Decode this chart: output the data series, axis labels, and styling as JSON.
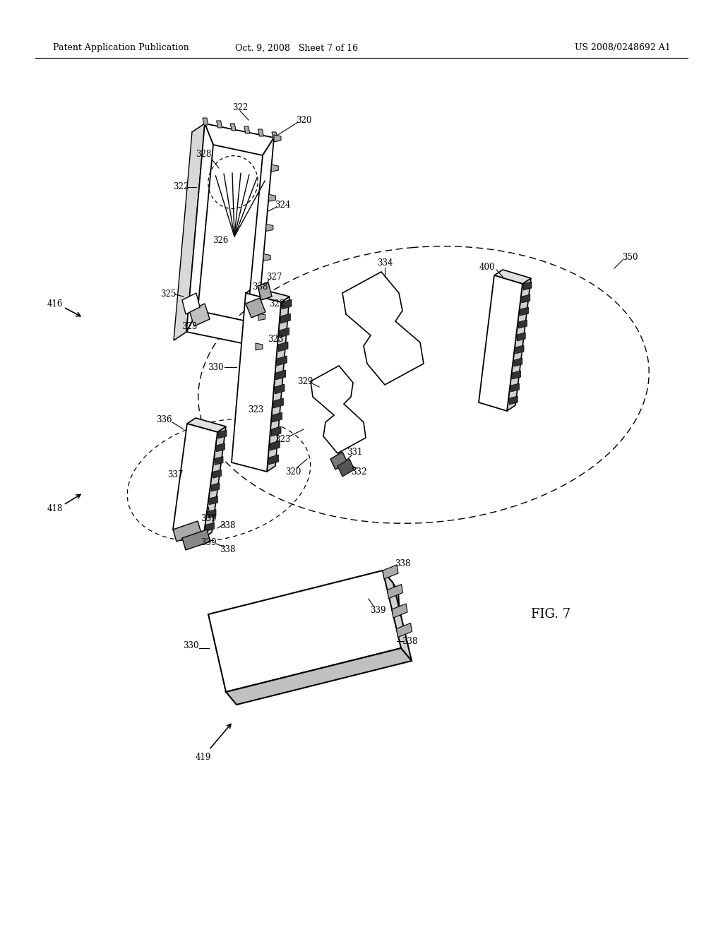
{
  "header_left": "Patent Application Publication",
  "header_center": "Oct. 9, 2008   Sheet 7 of 16",
  "header_right": "US 2008/0248692 A1",
  "fig_label": "FIG. 7",
  "bg": "#ffffff",
  "lc": "#000000"
}
